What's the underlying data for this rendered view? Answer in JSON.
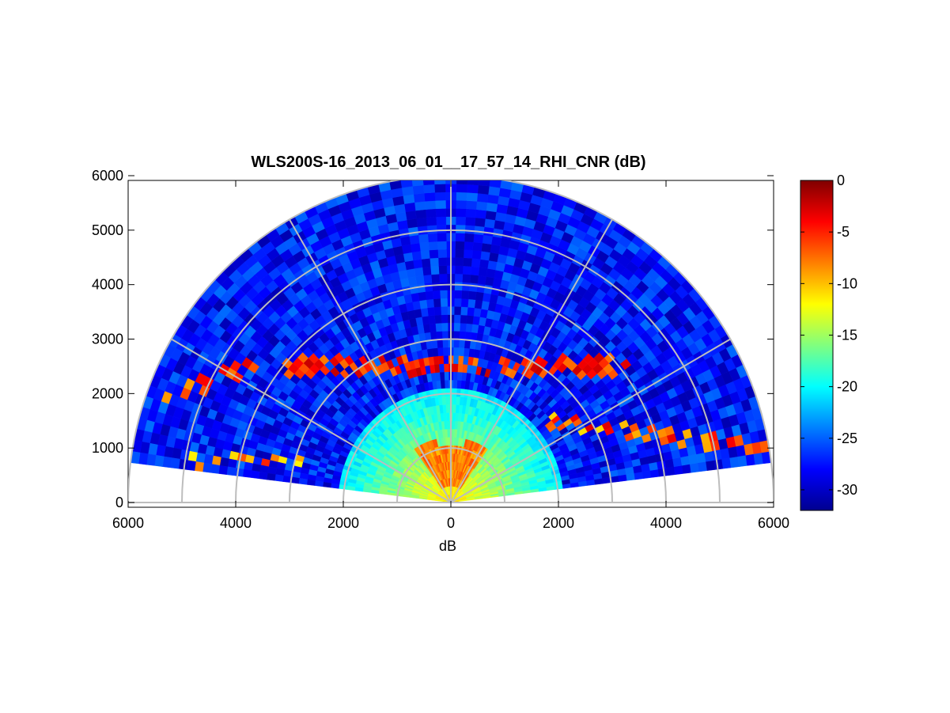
{
  "chart_data": {
    "type": "heatmap",
    "subtype": "polar-rhi-scan",
    "title": "WLS200S-16_2013_06_01__17_57_14_RHI_CNR (dB)",
    "xlabel": "dB",
    "ylabel": "",
    "xlim": [
      -6000,
      6000
    ],
    "ylim": [
      0,
      6000
    ],
    "x_ticks": [
      -6000,
      -4000,
      -2000,
      0,
      2000,
      4000,
      6000
    ],
    "x_tick_labels": [
      "6000",
      "4000",
      "2000",
      "0",
      "2000",
      "4000",
      "6000"
    ],
    "y_ticks": [
      0,
      1000,
      2000,
      3000,
      4000,
      5000,
      6000
    ],
    "y_tick_labels": [
      "0",
      "1000",
      "2000",
      "3000",
      "4000",
      "5000",
      "6000"
    ],
    "range_rings": [
      1000,
      2000,
      3000,
      4000,
      5000,
      6000
    ],
    "radial_spokes_deg": [
      0,
      30,
      60,
      90,
      120,
      150,
      180
    ],
    "scan_elevation_deg": [
      7,
      173
    ],
    "max_range": 6000,
    "colormap": "jet",
    "colorbar": {
      "clim": [
        -32,
        0
      ],
      "ticks": [
        0,
        -5,
        -10,
        -15,
        -20,
        -25,
        -30
      ],
      "tick_labels": [
        "0",
        "-5",
        "-10",
        "-15",
        "-20",
        "-25",
        "-30"
      ]
    },
    "field_features": [
      {
        "name": "near-field high-CNR region",
        "range_max": 2000,
        "value_dB": [
          -10,
          -16
        ]
      },
      {
        "name": "strong core",
        "range": [
          100,
          1200
        ],
        "elevation_deg": [
          60,
          120
        ],
        "value_dB": -7
      },
      {
        "name": "elevated aerosol layer",
        "height": 2500,
        "value_dB": -5
      },
      {
        "name": "low aerosol layer (right)",
        "height": 1200,
        "value_dB": -6
      },
      {
        "name": "low aerosol layer (left)",
        "height": 700,
        "value_dB": -7
      },
      {
        "name": "background far field",
        "value_dB": [
          -26,
          -31
        ]
      }
    ]
  }
}
